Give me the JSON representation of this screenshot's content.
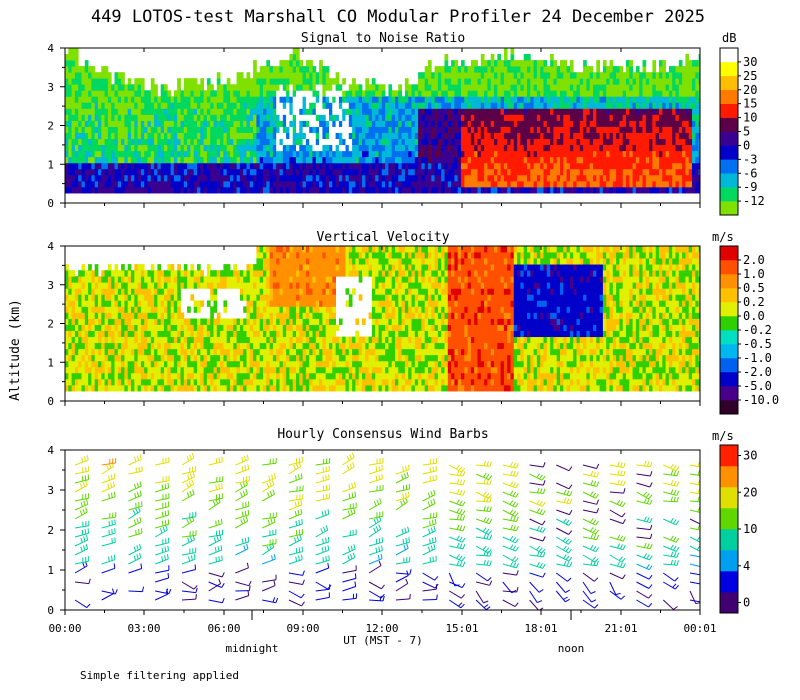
{
  "figure": {
    "title": "449 LOTOS-test Marshall CO Modular Profiler 24 December 2025",
    "ylabel": "Altitude (km)",
    "xlabel": "UT  (MST - 7)",
    "sublabels": [
      "midnight",
      "noon"
    ],
    "note": "Simple filtering applied"
  },
  "chart_data": [
    {
      "type": "heatmap",
      "title": "Signal to Noise Ratio",
      "units": "dB",
      "ylim": [
        0,
        4
      ],
      "yticks": [
        "0",
        "1",
        "2",
        "3",
        "4"
      ],
      "xtick_labels": [
        "00:00",
        "03:00",
        "06:00",
        "09:00",
        "12:00",
        "15:01",
        "18:01",
        "21:01",
        "00:01"
      ],
      "colorbar": {
        "labels": [
          "-12",
          "-9",
          "-6",
          "-3",
          "0",
          "5",
          "10",
          "15",
          "20",
          "25",
          "30"
        ],
        "colors": [
          "#80e000",
          "#00d860",
          "#00b8d8",
          "#0070f0",
          "#0000c8",
          "#3a0090",
          "#5c0048",
          "#ff1a00",
          "#ff7a00",
          "#ffbe00",
          "#ffff00",
          "#ffffff"
        ]
      }
    },
    {
      "type": "heatmap",
      "title": "Vertical Velocity",
      "units": "m/s",
      "ylim": [
        0,
        4
      ],
      "yticks": [
        "0",
        "1",
        "2",
        "3",
        "4"
      ],
      "colorbar": {
        "labels": [
          "-10.0",
          "-5.0",
          "-2.0",
          "-1.0",
          "-0.5",
          "-0.2",
          "0.0",
          "0.2",
          "0.5",
          "1.0",
          "2.0"
        ],
        "colors": [
          "#30002a",
          "#48008a",
          "#0000c8",
          "#0060f0",
          "#00b8f0",
          "#00e0c0",
          "#30d000",
          "#e0f000",
          "#ffc000",
          "#ff9000",
          "#ff5000",
          "#e00000"
        ]
      }
    },
    {
      "type": "wind-barbs",
      "title": "Hourly Consensus Wind Barbs",
      "units": "m/s",
      "ylim": [
        0,
        4
      ],
      "yticks": [
        "0",
        "1",
        "2",
        "3",
        "4"
      ],
      "colorbar": {
        "labels": [
          "0",
          "4",
          "10",
          "20",
          "30"
        ],
        "colors": [
          "#400070",
          "#0000e0",
          "#00a0f0",
          "#00d0a0",
          "#60d800",
          "#e0e000",
          "#ff9000",
          "#ff2000"
        ]
      }
    }
  ]
}
